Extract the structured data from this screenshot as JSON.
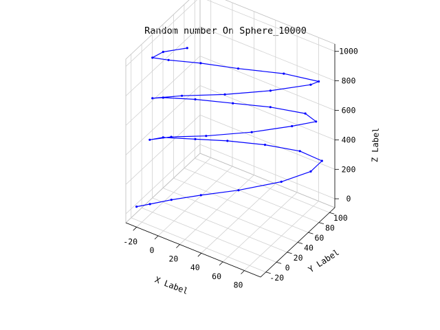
{
  "chart_data": {
    "type": "line3d",
    "title": "Random number On Sphere_10000",
    "xlabel": "X Label",
    "ylabel": "Y Label",
    "zlabel": "Z Label",
    "xticks": [
      "-20",
      "0",
      "20",
      "40",
      "60",
      "80"
    ],
    "yticks": [
      "-20",
      "0",
      "20",
      "40",
      "60",
      "80",
      "100"
    ],
    "zticks": [
      "0",
      "200",
      "400",
      "600",
      "800",
      "1000"
    ],
    "xlim": [
      -30,
      95
    ],
    "ylim": [
      -30,
      110
    ],
    "zlim": [
      -60,
      1050
    ],
    "grid": true,
    "series": [
      {
        "color": "#0000ff",
        "marker": "dot",
        "points": [
          [
            -25,
            -20,
            30
          ],
          [
            -15,
            -15,
            60
          ],
          [
            0,
            -5,
            100
          ],
          [
            20,
            10,
            140
          ],
          [
            45,
            30,
            180
          ],
          [
            70,
            60,
            210
          ],
          [
            85,
            85,
            240
          ],
          [
            88,
            100,
            270
          ],
          [
            70,
            95,
            300
          ],
          [
            45,
            80,
            320
          ],
          [
            20,
            60,
            340
          ],
          [
            0,
            40,
            360
          ],
          [
            -20,
            20,
            380
          ],
          [
            -25,
            5,
            400
          ],
          [
            -10,
            15,
            430
          ],
          [
            15,
            30,
            460
          ],
          [
            45,
            55,
            490
          ],
          [
            70,
            80,
            520
          ],
          [
            85,
            95,
            545
          ],
          [
            75,
            95,
            570
          ],
          [
            50,
            80,
            590
          ],
          [
            25,
            60,
            610
          ],
          [
            0,
            40,
            630
          ],
          [
            -20,
            20,
            650
          ],
          [
            -25,
            10,
            665
          ],
          [
            -5,
            25,
            690
          ],
          [
            25,
            45,
            720
          ],
          [
            55,
            70,
            750
          ],
          [
            80,
            95,
            780
          ],
          [
            85,
            100,
            800
          ],
          [
            60,
            85,
            830
          ],
          [
            30,
            60,
            860
          ],
          [
            5,
            40,
            890
          ],
          [
            -15,
            20,
            920
          ],
          [
            -25,
            10,
            940
          ],
          [
            -20,
            20,
            960
          ],
          [
            -5,
            35,
            980
          ]
        ]
      }
    ]
  }
}
